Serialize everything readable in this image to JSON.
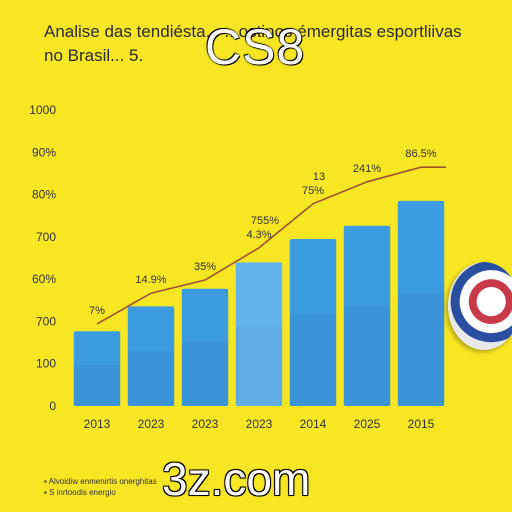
{
  "chart_data": {
    "type": "bar",
    "title": "Analise das tendiésta... ...ostinos émergitas esportliivas no Brasil... 5.",
    "categories": [
      "2013",
      "2023",
      "2023",
      "2023",
      "2014",
      "2025",
      "2015"
    ],
    "values": [
      255,
      340,
      400,
      490,
      570,
      615,
      700
    ],
    "line_values": [
      280,
      385,
      430,
      540,
      690,
      765,
      815
    ],
    "line_labels": [
      "7%",
      "14.9%",
      "35%",
      "4.3%",
      "75%",
      "241%",
      "86.5%"
    ],
    "line_labels_2": [
      "",
      "",
      "",
      "755%",
      "13",
      "",
      ""
    ],
    "yticks": [
      "0",
      "100",
      "700",
      "60%",
      "700",
      "80%",
      "90%",
      "1000"
    ],
    "highlight_index": 3,
    "colors": {
      "bar": "#3d9be0",
      "bar_highlight": "#63b3ec",
      "line": "#a0522d",
      "background": "#f7e623"
    },
    "legend_placement": "bottom-left"
  },
  "header": {
    "brand": "CS8"
  },
  "footer": {
    "site": "3z.com",
    "notes": [
      "Alvoidiw enmenirtis onerghitas",
      "S inrtoodis energio"
    ]
  }
}
